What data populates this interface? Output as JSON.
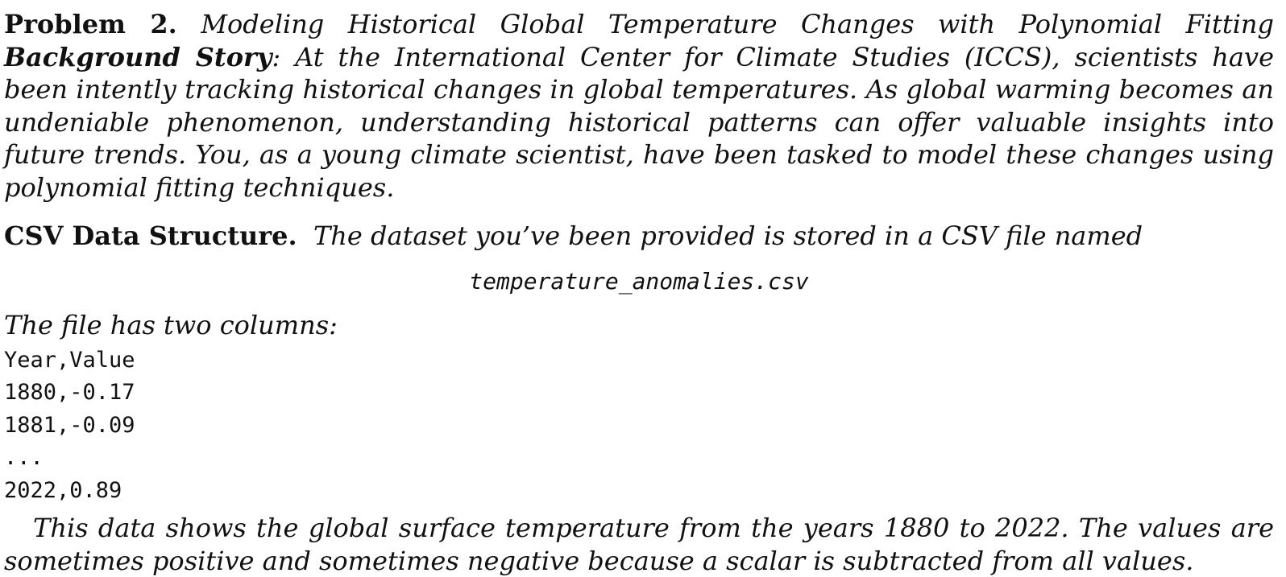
{
  "problem": {
    "label": "Problem 2.",
    "title": "Modeling Historical Global Temperature Changes with Polynomial Fitting",
    "background_label": "Background Story",
    "background_text": ": At the International Center for Climate Studies (ICCS), scientists have been intently tracking historical changes in global temperatures. As global warming becomes an undeniable phenomenon, understanding historical patterns can offer valuable insights into future trends. You, as a young climate scientist, have been tasked to model these changes using polynomial fitting techniques."
  },
  "csv_section": {
    "heading": "CSV Data Structure.",
    "text": "The dataset you’ve been provided is stored in a CSV file named",
    "filename": "temperature_anomalies.csv",
    "intro": "The file has two columns:",
    "code_lines": [
      "Year,Value",
      "1880,-0.17",
      "1881,-0.09",
      "...",
      "2022,0.89"
    ],
    "closing": "This data shows the global surface temperature from the years 1880 to 2022. The values are sometimes positive and sometimes negative because a scalar is subtracted from all values."
  }
}
